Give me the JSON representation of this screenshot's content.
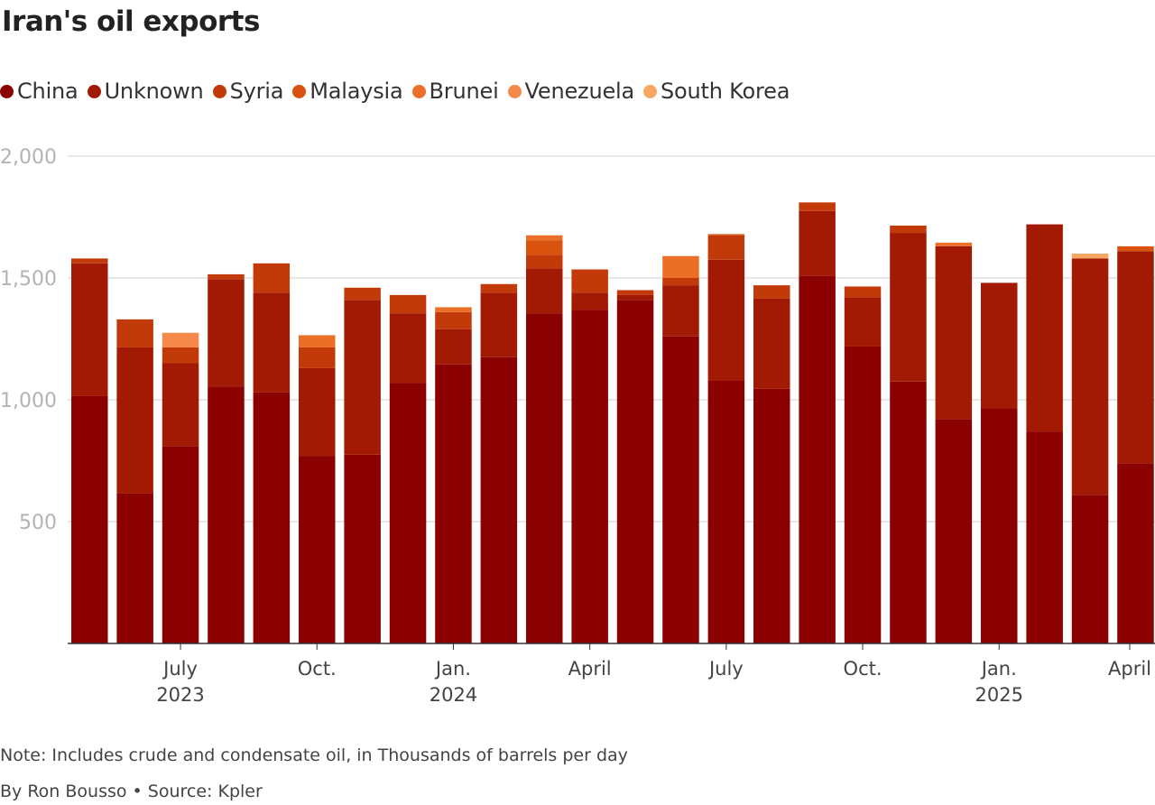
{
  "title": "Iran's oil exports",
  "note": "Note: Includes crude and condensate oil, in Thousands of barrels per day",
  "byline": "By Ron Bousso • Source: Kpler",
  "chart_data": {
    "type": "bar",
    "stacked": true,
    "title": "Iran's oil exports",
    "xlabel": "",
    "ylabel": "",
    "ylim": [
      0,
      2000
    ],
    "yticks": [
      500,
      1000,
      1500,
      2000
    ],
    "ytick_labels": [
      "500",
      "1,000",
      "1,500",
      "2,000"
    ],
    "grid": true,
    "legend_position": "top",
    "categories": [
      "May 2023",
      "Jun 2023",
      "Jul 2023",
      "Aug 2023",
      "Sep 2023",
      "Oct 2023",
      "Nov 2023",
      "Dec 2023",
      "Jan 2024",
      "Feb 2024",
      "Mar 2024",
      "Apr 2024",
      "May 2024",
      "Jun 2024",
      "Jul 2024",
      "Aug 2024",
      "Sep 2024",
      "Oct 2024",
      "Nov 2024",
      "Dec 2024",
      "Jan 2025",
      "Feb 2025",
      "Mar 2025",
      "Apr 2025"
    ],
    "x_tick_labels": [
      {
        "index": 2,
        "label": "July",
        "year": "2023"
      },
      {
        "index": 5,
        "label": "Oct.",
        "year": ""
      },
      {
        "index": 8,
        "label": "Jan.",
        "year": "2024"
      },
      {
        "index": 11,
        "label": "April",
        "year": ""
      },
      {
        "index": 14,
        "label": "July",
        "year": ""
      },
      {
        "index": 17,
        "label": "Oct.",
        "year": ""
      },
      {
        "index": 20,
        "label": "Jan.",
        "year": "2025"
      },
      {
        "index": 23,
        "label": "April",
        "year": ""
      }
    ],
    "series": [
      {
        "name": "China",
        "color": "#8b0000",
        "values": [
          1015,
          615,
          810,
          1055,
          1030,
          770,
          775,
          1070,
          1145,
          1175,
          1355,
          1370,
          1410,
          1260,
          1080,
          1045,
          1510,
          1220,
          1075,
          920,
          965,
          870,
          610,
          740
        ]
      },
      {
        "name": "Unknown",
        "color": "#a31a04",
        "values": [
          545,
          600,
          340,
          440,
          410,
          360,
          635,
          285,
          145,
          265,
          185,
          70,
          20,
          210,
          495,
          370,
          265,
          200,
          610,
          710,
          515,
          850,
          970,
          870
        ]
      },
      {
        "name": "Syria",
        "color": "#c23a0a",
        "values": [
          20,
          115,
          65,
          20,
          120,
          85,
          50,
          75,
          70,
          35,
          55,
          95,
          20,
          30,
          100,
          55,
          35,
          45,
          30,
          0,
          0,
          0,
          0,
          0
        ]
      },
      {
        "name": "Malaysia",
        "color": "#d9530f",
        "values": [
          0,
          0,
          0,
          0,
          0,
          0,
          0,
          0,
          0,
          0,
          60,
          0,
          0,
          0,
          5,
          0,
          0,
          0,
          0,
          0,
          0,
          0,
          0,
          20
        ]
      },
      {
        "name": "Brunei",
        "color": "#ec6f28",
        "values": [
          0,
          0,
          0,
          0,
          0,
          50,
          0,
          0,
          20,
          0,
          20,
          0,
          0,
          90,
          0,
          0,
          0,
          0,
          0,
          15,
          0,
          0,
          0,
          0
        ]
      },
      {
        "name": "Venezuela",
        "color": "#f4894a",
        "values": [
          0,
          0,
          60,
          0,
          0,
          0,
          0,
          0,
          0,
          0,
          0,
          0,
          0,
          0,
          0,
          0,
          0,
          0,
          0,
          0,
          0,
          0,
          0,
          0
        ]
      },
      {
        "name": "South Korea",
        "color": "#f7a762",
        "values": [
          0,
          0,
          0,
          0,
          0,
          0,
          0,
          0,
          0,
          0,
          0,
          0,
          0,
          0,
          0,
          0,
          0,
          0,
          0,
          0,
          0,
          0,
          20,
          0
        ]
      }
    ]
  }
}
